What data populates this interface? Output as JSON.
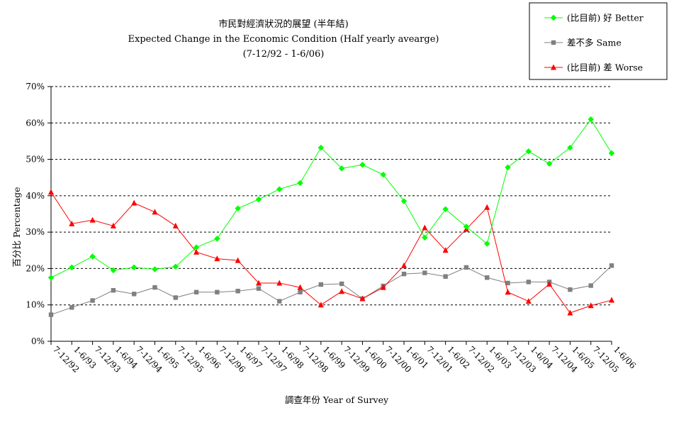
{
  "chart_data": {
    "type": "line",
    "title": "市民對經濟狀況的展望 (半年結)",
    "subtitle": "Expected Change in the Economic Condition (Half yearly avearge)",
    "period": "(7-12/92 - 1-6/06)",
    "xlabel": "調查年份 Year of Survey",
    "ylabel": "百分比 Percentage",
    "ylim": [
      0,
      70
    ],
    "yticks": [
      "0%",
      "10%",
      "20%",
      "30%",
      "40%",
      "50%",
      "60%",
      "70%"
    ],
    "grid": true,
    "legend_position": "top-right",
    "categories": [
      "7-12/92",
      "1-6/93",
      "7-12/93",
      "1-6/94",
      "7-12/94",
      "1-6/95",
      "7-12/95",
      "1-6/96",
      "7-12/96",
      "1-6/97",
      "7-12/97",
      "1-6/98",
      "7-12/98",
      "1-6/99",
      "7-12/99",
      "1-6/00",
      "7-12/00",
      "1-6/01",
      "7-12/01",
      "1-6/02",
      "7-12/02",
      "1-6/03",
      "7-12/03",
      "1-6/04",
      "7-12/04",
      "1-6/05",
      "7-12/05",
      "1-6/06"
    ],
    "series": [
      {
        "name": "(比目前) 好 Better",
        "color": "#00ff00",
        "marker": "diamond",
        "values": [
          17.5,
          20.3,
          23.3,
          19.5,
          20.3,
          19.8,
          20.5,
          25.8,
          28.2,
          36.5,
          39.0,
          41.8,
          43.5,
          53.2,
          47.5,
          48.5,
          45.8,
          38.5,
          28.5,
          36.3,
          31.5,
          26.8,
          47.8,
          52.2,
          48.8,
          53.2,
          61.0,
          51.7
        ]
      },
      {
        "name": "差不多 Same",
        "color": "#808080",
        "marker": "square",
        "values": [
          7.3,
          9.3,
          11.2,
          14.0,
          13.0,
          14.8,
          12.0,
          13.5,
          13.5,
          13.8,
          14.5,
          11.0,
          13.5,
          15.6,
          15.8,
          11.7,
          15.2,
          18.5,
          18.8,
          17.8,
          20.3,
          17.5,
          16.0,
          16.3,
          16.3,
          14.2,
          15.3,
          20.8
        ]
      },
      {
        "name": "(比目前) 差 Worse",
        "color": "#ff0000",
        "marker": "triangle",
        "values": [
          41.0,
          32.3,
          33.3,
          31.7,
          38.0,
          35.5,
          31.7,
          24.5,
          22.7,
          22.2,
          16.0,
          16.0,
          14.8,
          10.0,
          13.7,
          11.7,
          14.8,
          20.8,
          31.2,
          25.0,
          30.8,
          36.8,
          13.5,
          11.0,
          15.7,
          7.8,
          9.8,
          11.3
        ]
      }
    ]
  }
}
